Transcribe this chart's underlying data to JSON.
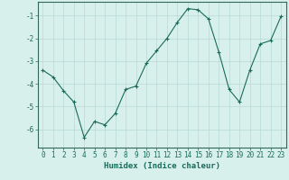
{
  "x": [
    0,
    1,
    2,
    3,
    4,
    5,
    6,
    7,
    8,
    9,
    10,
    11,
    12,
    13,
    14,
    15,
    16,
    17,
    18,
    19,
    20,
    21,
    22,
    23
  ],
  "y": [
    -3.4,
    -3.7,
    -4.3,
    -4.8,
    -6.35,
    -5.65,
    -5.8,
    -5.3,
    -4.25,
    -4.1,
    -3.1,
    -2.55,
    -2.0,
    -1.3,
    -0.7,
    -0.75,
    -1.15,
    -2.6,
    -4.25,
    -4.8,
    -3.4,
    -2.25,
    -2.1,
    -1.05
  ],
  "line_color": "#1a6b5a",
  "marker": "+",
  "marker_size": 3,
  "marker_lw": 0.8,
  "line_width": 0.8,
  "bg_color": "#d8f0ec",
  "grid_color": "#b8d8d4",
  "xlabel": "Humidex (Indice chaleur)",
  "xlim": [
    -0.5,
    23.5
  ],
  "ylim": [
    -6.8,
    -0.4
  ],
  "yticks": [
    -6,
    -5,
    -4,
    -3,
    -2,
    -1
  ],
  "xticks": [
    0,
    1,
    2,
    3,
    4,
    5,
    6,
    7,
    8,
    9,
    10,
    11,
    12,
    13,
    14,
    15,
    16,
    17,
    18,
    19,
    20,
    21,
    22,
    23
  ],
  "tick_fontsize": 5.5,
  "xlabel_fontsize": 6.5,
  "spine_color": "#336655"
}
